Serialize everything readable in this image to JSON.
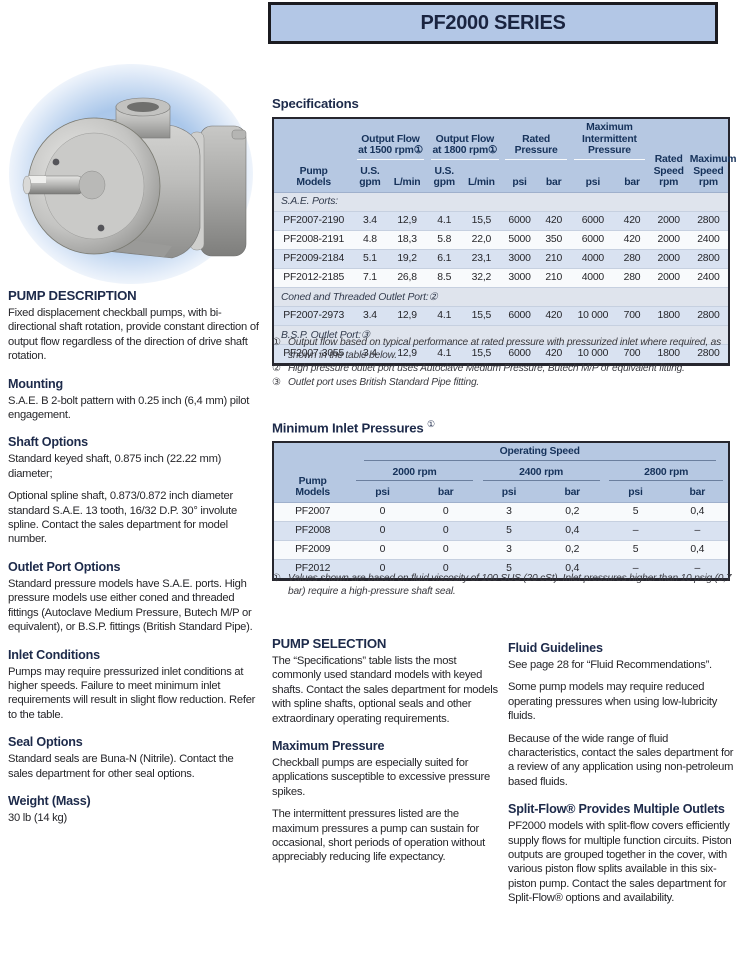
{
  "colors": {
    "banner_bg": "#b3c7e6",
    "banner_border": "#1b1b20",
    "table_header_bg": "#b6c8e2",
    "header_text": "#16325a",
    "row_blue": "#d9e2f1",
    "row_white": "#f8fafc",
    "section_row_bg": "#dfe4ed",
    "heading_navy": "#1d2a4a",
    "photo_glow": "#aac7ea"
  },
  "banner": {
    "title": "PF2000 SERIES"
  },
  "photo": {
    "alt_name": "pump-product-photo"
  },
  "left_column": {
    "sections": [
      {
        "heading": "PUMP DESCRIPTION",
        "paragraphs": [
          "Fixed displacement checkball pumps, with bi-directional shaft rotation, provide constant direction of output flow regardless of the direction of drive shaft rotation."
        ]
      },
      {
        "heading": "Mounting",
        "paragraphs": [
          "S.A.E. B 2-bolt pattern with 0.25 inch (6,4 mm) pilot engagement."
        ]
      },
      {
        "heading": "Shaft Options",
        "paragraphs": [
          "Standard keyed shaft, 0.875 inch (22.22 mm) diameter;",
          "Optional spline shaft, 0.873/0.872 inch diameter standard S.A.E. 13 tooth, 16/32 D.P. 30° involute spline. Contact the sales department for model number."
        ]
      },
      {
        "heading": "Outlet Port Options",
        "paragraphs": [
          "Standard pressure models have S.A.E. ports. High pressure models use either coned and threaded fittings (Autoclave Medium Pressure, Butech M/P or equivalent), or B.S.P. fittings (British Standard Pipe)."
        ]
      },
      {
        "heading": "Inlet Conditions",
        "paragraphs": [
          "Pumps may require pressurized inlet conditions at higher speeds. Failure to meet minimum inlet requirements will result in slight flow reduction. Refer to the table."
        ]
      },
      {
        "heading": "Seal Options",
        "paragraphs": [
          "Standard seals are Buna-N (Nitrile). Contact the sales department for other seal options."
        ]
      },
      {
        "heading": "Weight (Mass)",
        "paragraphs": [
          "30 lb (14 kg)"
        ]
      }
    ]
  },
  "spec_table": {
    "heading": "Specifications",
    "header": {
      "pump_models": "Pump\nModels",
      "group_1500": "Output Flow\nat 1500 rpm①",
      "group_1800": "Output Flow\nat 1800 rpm①",
      "rated_pressure": "Rated\nPressure",
      "max_intermittent": "Maximum\nIntermittent\nPressure",
      "rated_speed": "Rated\nSpeed\nrpm",
      "max_speed": "Maximum\nSpeed\nrpm",
      "us_gpm": "U.S.\ngpm",
      "lmin": "L/min",
      "psi": "psi",
      "bar": "bar"
    },
    "sections": [
      {
        "label": "S.A.E. Ports:",
        "mark": "",
        "rows": [
          [
            "PF2007-2190",
            "3.4",
            "12,9",
            "4.1",
            "15,5",
            "6000",
            "420",
            "6000",
            "420",
            "2000",
            "2800"
          ],
          [
            "PF2008-2191",
            "4.8",
            "18,3",
            "5.8",
            "22,0",
            "5000",
            "350",
            "6000",
            "420",
            "2000",
            "2400"
          ],
          [
            "PF2009-2184",
            "5.1",
            "19,2",
            "6.1",
            "23,1",
            "3000",
            "210",
            "4000",
            "280",
            "2000",
            "2800"
          ],
          [
            "PF2012-2185",
            "7.1",
            "26,8",
            "8.5",
            "32,2",
            "3000",
            "210",
            "4000",
            "280",
            "2000",
            "2400"
          ]
        ]
      },
      {
        "label": "Coned and Threaded Outlet Port:",
        "mark": "②",
        "rows": [
          [
            "PF2007-2973",
            "3.4",
            "12,9",
            "4.1",
            "15,5",
            "6000",
            "420",
            "10 000",
            "700",
            "1800",
            "2800"
          ]
        ]
      },
      {
        "label": "B.S.P. Outlet Port:",
        "mark": "③",
        "rows": [
          [
            "PF2007-3055",
            "3.4",
            "12,9",
            "4.1",
            "15,5",
            "6000",
            "420",
            "10 000",
            "700",
            "1800",
            "2800"
          ]
        ]
      }
    ],
    "footnotes": [
      {
        "mark": "①",
        "text": "Output flow based on typical performance at rated pressure with pressurized inlet where required, as shown in the table below."
      },
      {
        "mark": "②",
        "text": "High pressure outlet port uses Autoclave Medium Pressure, Butech M/P or equivalent fitting."
      },
      {
        "mark": "③",
        "text": "Outlet port uses British Standard Pipe fitting."
      }
    ]
  },
  "min_table": {
    "heading": "Minimum Inlet Pressures",
    "heading_mark": "①",
    "header": {
      "pump_models": "Pump\nModels",
      "operating_speed": "Operating Speed",
      "speed_groups": [
        "2000 rpm",
        "2400 rpm",
        "2800 rpm"
      ],
      "psi": "psi",
      "bar": "bar"
    },
    "rows": [
      [
        "PF2007",
        "0",
        "0",
        "3",
        "0,2",
        "5",
        "0,4"
      ],
      [
        "PF2008",
        "0",
        "0",
        "5",
        "0,4",
        "–",
        "–"
      ],
      [
        "PF2009",
        "0",
        "0",
        "3",
        "0,2",
        "5",
        "0,4"
      ],
      [
        "PF2012",
        "0",
        "0",
        "5",
        "0,4",
        "–",
        "–"
      ]
    ],
    "footnotes": [
      {
        "mark": "①",
        "text": "Values shown are based on fluid viscosity of 100 SUS (20 cSt). Inlet pressures higher than 10 psig (0,7 bar) require a high-pressure shaft seal."
      }
    ]
  },
  "mid_column": {
    "sections": [
      {
        "heading": "PUMP SELECTION",
        "paragraphs": [
          "The “Specifications” table lists the most commonly used standard models with keyed shafts. Contact the sales department for models with spline shafts, optional seals and other extraordinary operating requirements."
        ]
      },
      {
        "heading": "Maximum Pressure",
        "paragraphs": [
          "Checkball pumps are especially suited for applications susceptible to excessive pressure spikes.",
          "The intermittent pressures listed are the maximum pressures a pump can sustain for occasional, short periods of operation without appreciably reducing life expectancy."
        ]
      }
    ]
  },
  "right_column": {
    "sections": [
      {
        "heading": "Fluid Guidelines",
        "paragraphs": [
          "See page 28 for “Fluid Recommendations”.",
          "Some pump models may require reduced operating pressures when using low-lubricity fluids.",
          "Because of the wide range of fluid characteristics, contact the sales department for a review of any application using non-petroleum based fluids."
        ]
      },
      {
        "heading": "Split-Flow® Provides Multiple Outlets",
        "paragraphs": [
          "PF2000 models with split-flow covers efficiently supply flows for multiple function circuits. Piston outputs are grouped together in the cover, with various piston flow splits available in this six-piston pump. Contact the sales department for Split-Flow® options and availability."
        ]
      }
    ]
  }
}
